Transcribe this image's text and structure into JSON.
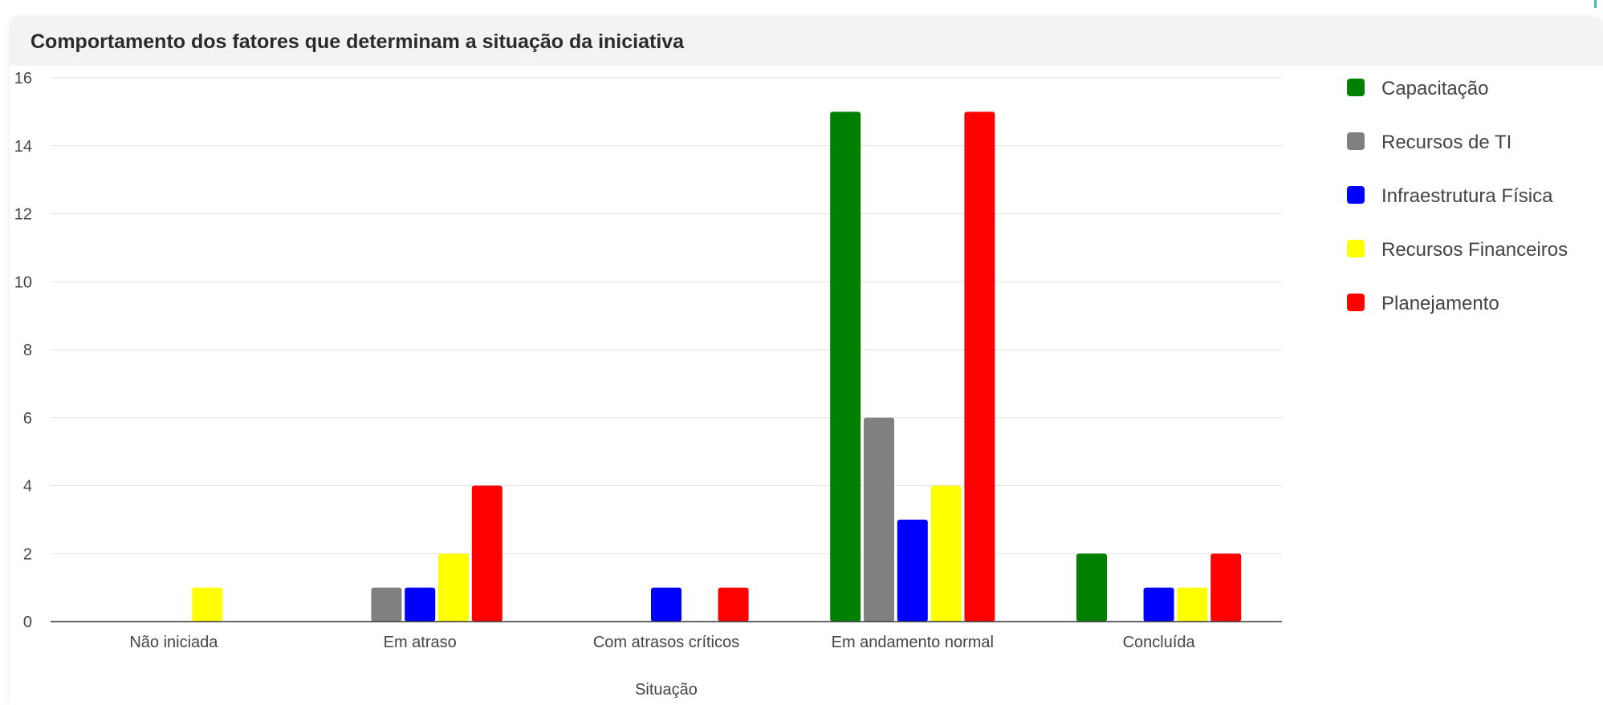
{
  "panel": {
    "title": "Comportamento dos fatores que determinam a situação da iniciativa"
  },
  "chart_data": {
    "type": "bar",
    "title": "Comportamento dos fatores que determinam a situação da iniciativa",
    "xlabel": "Situação",
    "ylabel": "",
    "ylim": [
      0,
      16
    ],
    "yticks": [
      0,
      2,
      4,
      6,
      8,
      10,
      12,
      14,
      16
    ],
    "grid": true,
    "legend_position": "right",
    "categories": [
      "Não iniciada",
      "Em atraso",
      "Com atrasos críticos",
      "Em andamento normal",
      "Concluída"
    ],
    "series": [
      {
        "name": "Capacitação",
        "color": "#008000",
        "values": [
          0,
          0,
          0,
          15,
          2
        ]
      },
      {
        "name": "Recursos de TI",
        "color": "#808080",
        "values": [
          0,
          1,
          0,
          6,
          0
        ]
      },
      {
        "name": "Infraestrutura Física",
        "color": "#0000ff",
        "values": [
          0,
          1,
          1,
          3,
          1
        ]
      },
      {
        "name": "Recursos Financeiros",
        "color": "#ffff00",
        "values": [
          1,
          2,
          0,
          4,
          1
        ]
      },
      {
        "name": "Planejamento",
        "color": "#ff0000",
        "values": [
          0,
          4,
          1,
          15,
          2
        ]
      }
    ]
  }
}
